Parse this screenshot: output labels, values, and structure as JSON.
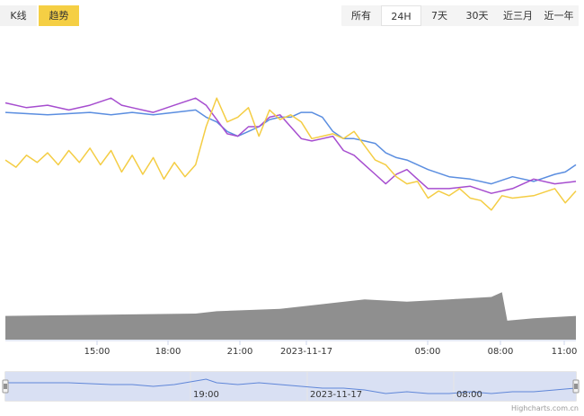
{
  "view_tabs": [
    {
      "label": "K线",
      "active": false
    },
    {
      "label": "趋势",
      "active": true
    }
  ],
  "range_buttons": [
    {
      "label": "所有",
      "active": false
    },
    {
      "label": "24H",
      "active": true
    },
    {
      "label": "7天",
      "active": false
    },
    {
      "label": "30天",
      "active": false
    },
    {
      "label": "近三月",
      "active": false
    },
    {
      "label": "近一年",
      "active": false
    }
  ],
  "colors": {
    "tab_active": "#f5cf44",
    "series_blue": "#5b8ee0",
    "series_purple": "#a64dcf",
    "series_yellow": "#f4cd44",
    "volume": "#8f8f8f",
    "navigator_fill": "#d9e0f3",
    "navigator_line": "#5f86d8"
  },
  "credit": "Highcharts.com.cn",
  "chart_data": {
    "type": "line",
    "x_ticks": [
      "15:00",
      "18:00",
      "21:00",
      "2023-11-17",
      "05:00",
      "08:00",
      "11:00"
    ],
    "y_axis_labels_visible": false,
    "grid": false,
    "legend": "none",
    "series": [
      {
        "color": "#5b8ee0",
        "points": [
          [
            0,
            66
          ],
          [
            4,
            65
          ],
          [
            8,
            66
          ],
          [
            10,
            65
          ],
          [
            12,
            66
          ],
          [
            14,
            65
          ],
          [
            16,
            66
          ],
          [
            18,
            67
          ],
          [
            19,
            64
          ],
          [
            20,
            62
          ],
          [
            21,
            58
          ],
          [
            22,
            56
          ],
          [
            23,
            58
          ],
          [
            24,
            60
          ],
          [
            25,
            63
          ],
          [
            26,
            64
          ],
          [
            27,
            64
          ],
          [
            28,
            66
          ],
          [
            29,
            66
          ],
          [
            30,
            64
          ],
          [
            31,
            58
          ],
          [
            32,
            55
          ],
          [
            33,
            55
          ],
          [
            34,
            54
          ],
          [
            35,
            53
          ],
          [
            36,
            49
          ],
          [
            37,
            47
          ],
          [
            38,
            46
          ],
          [
            40,
            42
          ],
          [
            42,
            39
          ],
          [
            44,
            38
          ],
          [
            46,
            36
          ],
          [
            48,
            39
          ],
          [
            50,
            37
          ],
          [
            52,
            40
          ],
          [
            53,
            41
          ],
          [
            54,
            44
          ]
        ]
      },
      {
        "color": "#a64dcf",
        "points": [
          [
            0,
            70
          ],
          [
            2,
            68
          ],
          [
            4,
            69
          ],
          [
            6,
            67
          ],
          [
            8,
            69
          ],
          [
            10,
            72
          ],
          [
            11,
            69
          ],
          [
            12,
            68
          ],
          [
            14,
            66
          ],
          [
            16,
            69
          ],
          [
            18,
            72
          ],
          [
            19,
            69
          ],
          [
            20,
            63
          ],
          [
            21,
            57
          ],
          [
            22,
            56
          ],
          [
            23,
            60
          ],
          [
            24,
            60
          ],
          [
            25,
            64
          ],
          [
            26,
            65
          ],
          [
            27,
            60
          ],
          [
            28,
            55
          ],
          [
            29,
            54
          ],
          [
            30,
            55
          ],
          [
            31,
            56
          ],
          [
            32,
            50
          ],
          [
            33,
            48
          ],
          [
            34,
            44
          ],
          [
            35,
            40
          ],
          [
            36,
            36
          ],
          [
            37,
            40
          ],
          [
            38,
            42
          ],
          [
            39,
            38
          ],
          [
            40,
            34
          ],
          [
            42,
            34
          ],
          [
            44,
            35
          ],
          [
            46,
            32
          ],
          [
            48,
            34
          ],
          [
            50,
            38
          ],
          [
            52,
            36
          ],
          [
            54,
            37
          ]
        ]
      },
      {
        "color": "#f4cd44",
        "points": [
          [
            0,
            46
          ],
          [
            1,
            43
          ],
          [
            2,
            48
          ],
          [
            3,
            45
          ],
          [
            4,
            49
          ],
          [
            5,
            44
          ],
          [
            6,
            50
          ],
          [
            7,
            45
          ],
          [
            8,
            51
          ],
          [
            9,
            44
          ],
          [
            10,
            50
          ],
          [
            11,
            41
          ],
          [
            12,
            48
          ],
          [
            13,
            40
          ],
          [
            14,
            47
          ],
          [
            15,
            38
          ],
          [
            16,
            45
          ],
          [
            17,
            39
          ],
          [
            18,
            44
          ],
          [
            19,
            60
          ],
          [
            20,
            72
          ],
          [
            21,
            62
          ],
          [
            22,
            64
          ],
          [
            23,
            68
          ],
          [
            24,
            56
          ],
          [
            25,
            67
          ],
          [
            26,
            63
          ],
          [
            27,
            65
          ],
          [
            28,
            62
          ],
          [
            29,
            55
          ],
          [
            30,
            56
          ],
          [
            31,
            57
          ],
          [
            32,
            55
          ],
          [
            33,
            58
          ],
          [
            34,
            52
          ],
          [
            35,
            46
          ],
          [
            36,
            44
          ],
          [
            37,
            39
          ],
          [
            38,
            36
          ],
          [
            39,
            37
          ],
          [
            40,
            30
          ],
          [
            41,
            33
          ],
          [
            42,
            31
          ],
          [
            43,
            34
          ],
          [
            44,
            30
          ],
          [
            45,
            29
          ],
          [
            46,
            25
          ],
          [
            47,
            31
          ],
          [
            48,
            30
          ],
          [
            50,
            31
          ],
          [
            52,
            34
          ],
          [
            53,
            28
          ],
          [
            54,
            33
          ]
        ]
      },
      {
        "color": "#8f8f8f",
        "kind": "volume_area",
        "points": [
          [
            0,
            10
          ],
          [
            18,
            11
          ],
          [
            20,
            12
          ],
          [
            26,
            13
          ],
          [
            30,
            15
          ],
          [
            34,
            17
          ],
          [
            38,
            16
          ],
          [
            42,
            17
          ],
          [
            46,
            18
          ],
          [
            47,
            20
          ],
          [
            47.5,
            8
          ],
          [
            50,
            9
          ],
          [
            54,
            10
          ]
        ]
      }
    ]
  },
  "navigator": {
    "labels": [
      "19:00",
      "2023-11-17",
      "08:00"
    ],
    "points": [
      [
        0,
        9
      ],
      [
        6,
        9
      ],
      [
        10,
        8
      ],
      [
        12,
        8
      ],
      [
        14,
        7
      ],
      [
        16,
        8
      ],
      [
        18,
        10
      ],
      [
        19,
        11
      ],
      [
        20,
        9
      ],
      [
        22,
        8
      ],
      [
        24,
        9
      ],
      [
        26,
        8
      ],
      [
        28,
        7
      ],
      [
        30,
        6
      ],
      [
        32,
        6
      ],
      [
        34,
        5
      ],
      [
        36,
        3
      ],
      [
        38,
        4
      ],
      [
        40,
        3
      ],
      [
        42,
        3
      ],
      [
        44,
        4
      ],
      [
        46,
        3
      ],
      [
        48,
        4
      ],
      [
        50,
        4
      ],
      [
        52,
        5
      ],
      [
        54,
        6
      ]
    ]
  }
}
